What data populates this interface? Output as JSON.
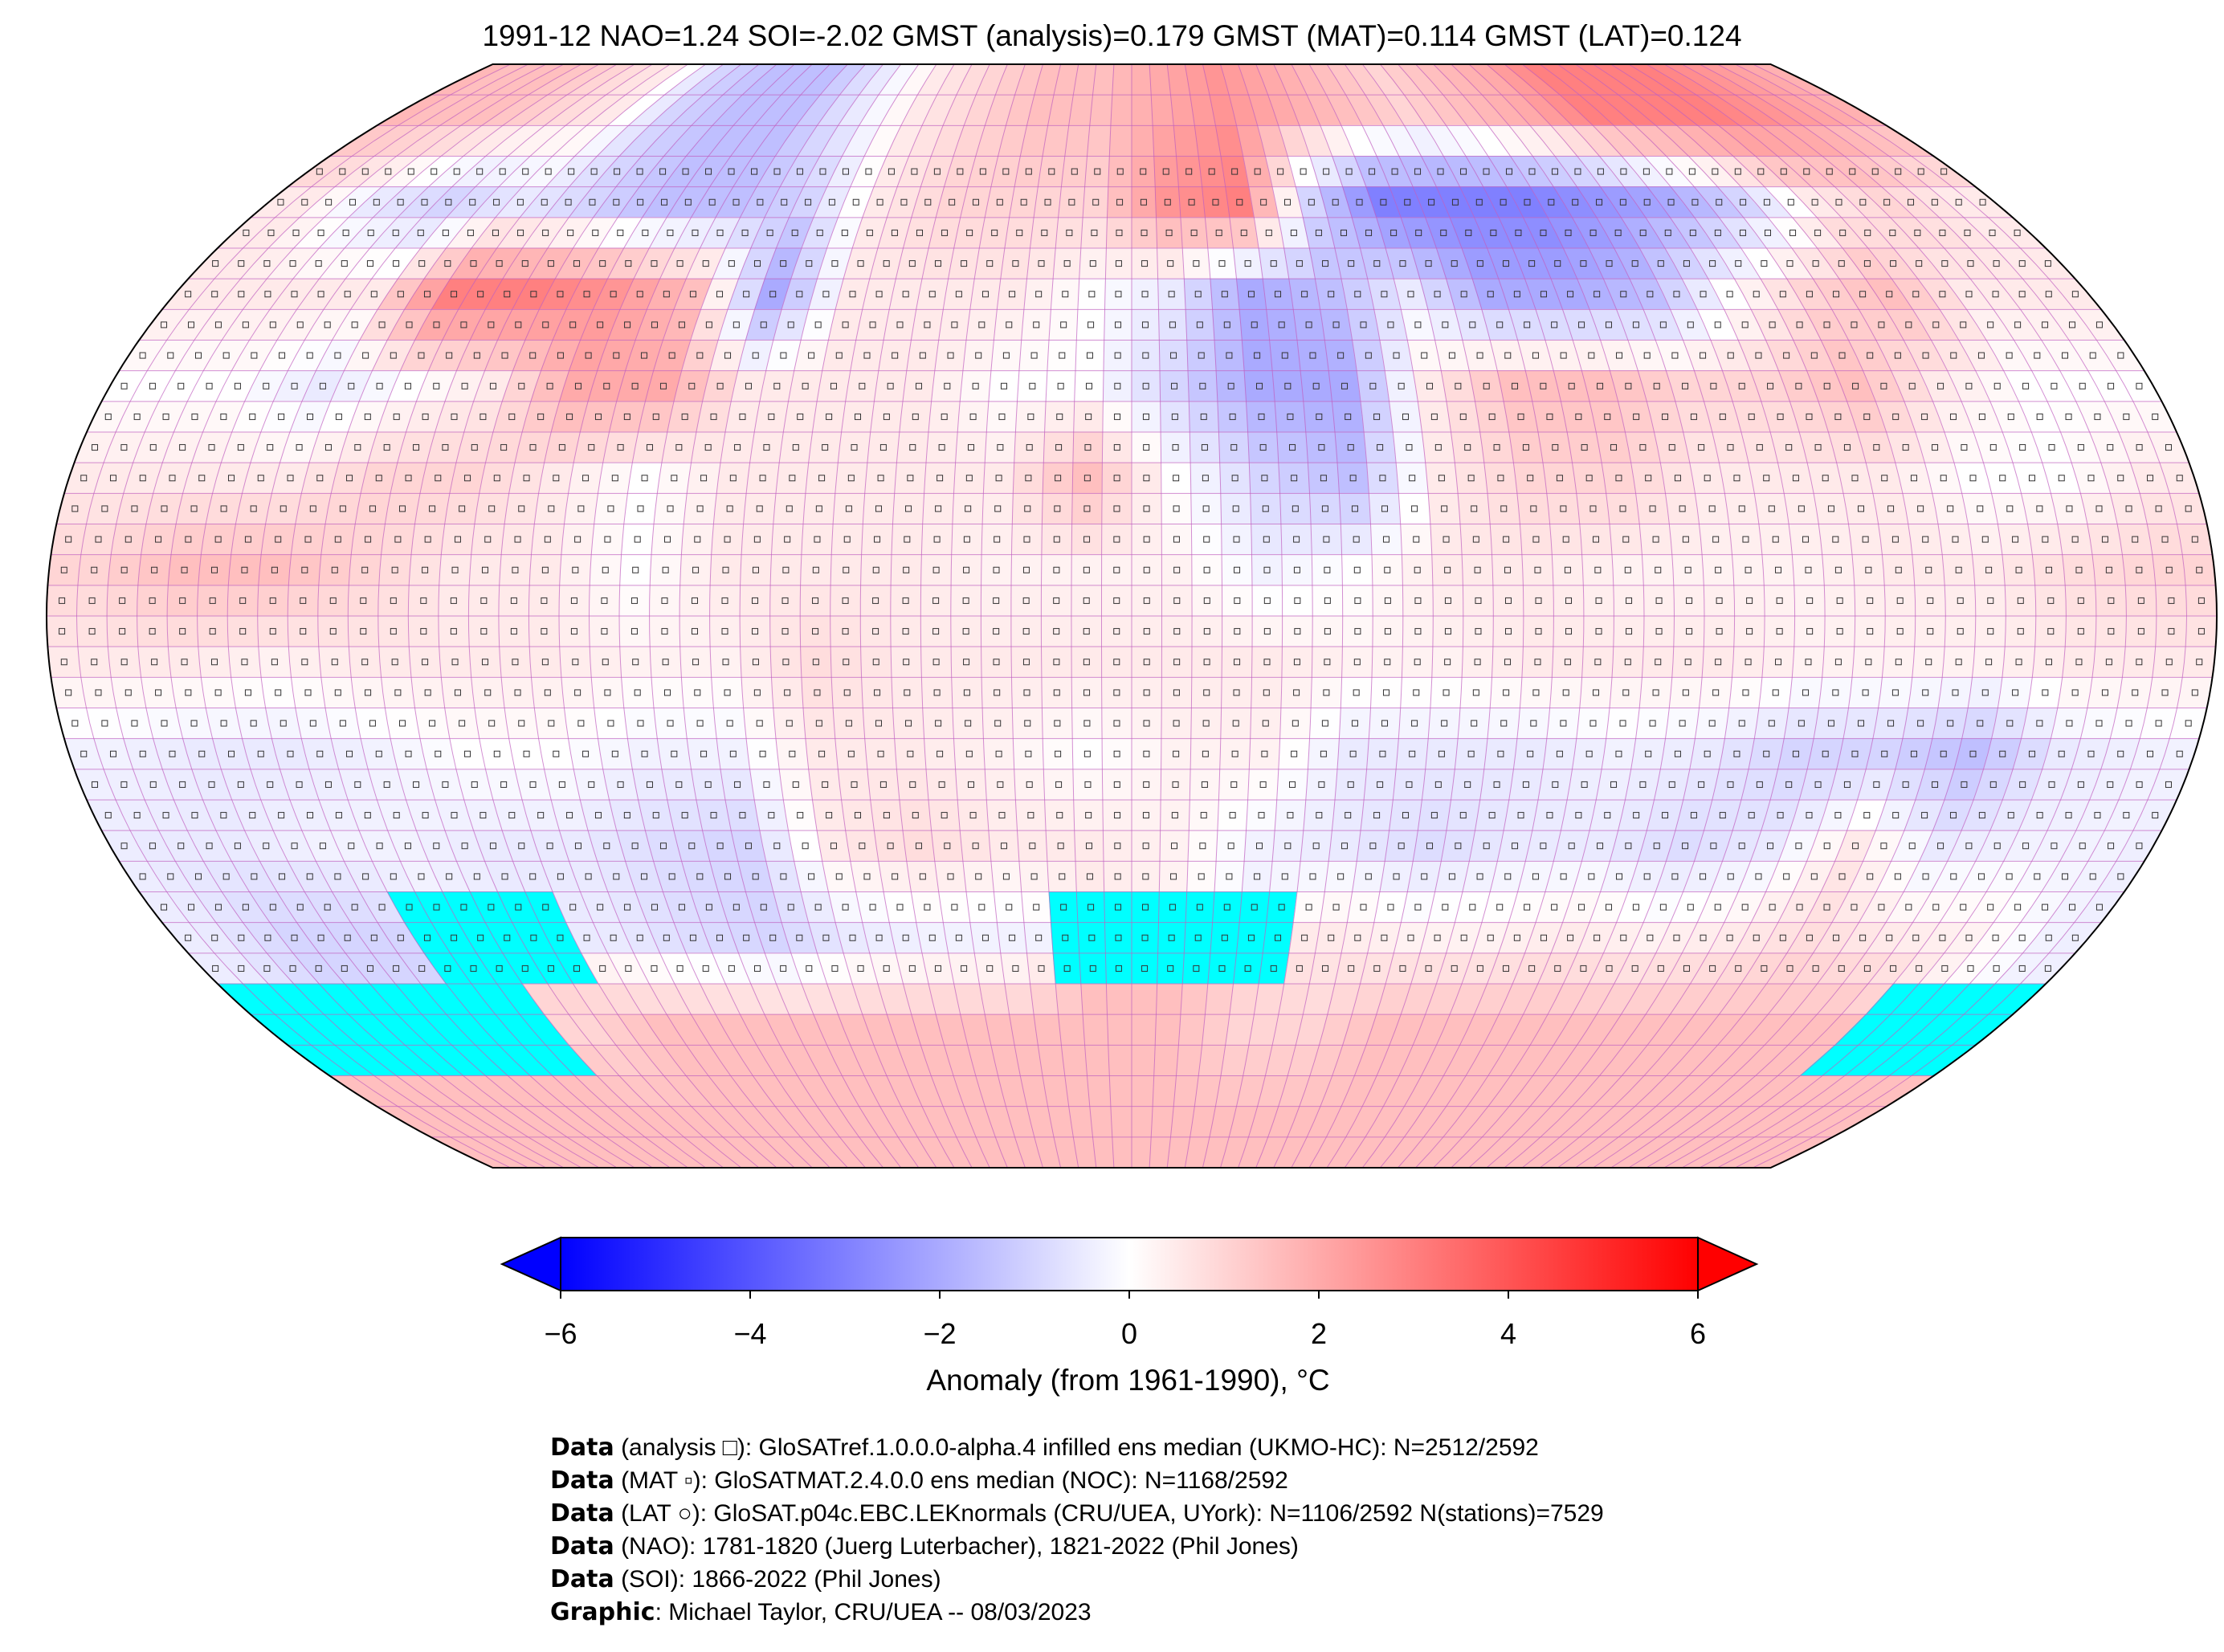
{
  "chart_data": {
    "type": "heatmap",
    "title": "1991-12 NAO=1.24 SOI=-2.02 GMST (analysis)=0.179 GMST (MAT)=0.114 GMST (LAT)=0.124",
    "projection": "Robinson",
    "grid_resolution_deg": 5,
    "coarse_lon": [
      -172.5,
      -157.5,
      -142.5,
      -127.5,
      -112.5,
      -97.5,
      -82.5,
      -67.5,
      -52.5,
      -37.5,
      -22.5,
      -7.5,
      7.5,
      22.5,
      37.5,
      52.5,
      67.5,
      82.5,
      97.5,
      112.5,
      127.5,
      142.5,
      157.5,
      172.5
    ],
    "coarse_lat": [
      82.5,
      67.5,
      52.5,
      37.5,
      22.5,
      7.5,
      -7.5,
      -22.5,
      -37.5,
      -52.5,
      -67.5,
      -82.5
    ],
    "anomaly_estimate": [
      [
        1.5,
        1.5,
        1,
        0.5,
        -1,
        -1.5,
        -1.5,
        -0.5,
        0.5,
        1,
        1.5,
        1.5,
        2,
        2.5,
        2,
        1.5,
        1,
        1.5,
        2,
        3,
        3,
        3,
        2.5,
        2
      ],
      [
        0.5,
        -0.5,
        -1,
        -0.5,
        -1,
        -1.5,
        -1.5,
        -1,
        0.5,
        1,
        1,
        1,
        2.5,
        3,
        -1,
        -3,
        -3,
        -3,
        -2.5,
        -2,
        -1,
        0.5,
        1,
        0.5
      ],
      [
        0.5,
        0.5,
        0.5,
        3,
        3,
        2.5,
        1.5,
        -2,
        0.5,
        0.5,
        0.5,
        0,
        -0.5,
        -2,
        -1.5,
        -0.5,
        -2,
        -2,
        -1.5,
        0,
        1,
        1.5,
        0.5,
        0.5
      ],
      [
        0,
        0,
        -0.5,
        0,
        0.5,
        2,
        2,
        0.5,
        0.5,
        0.5,
        0,
        0,
        -1,
        -2,
        -2,
        0.5,
        1.5,
        1.5,
        1,
        1,
        1.5,
        0.5,
        0,
        0
      ],
      [
        0.5,
        0.5,
        0.5,
        1,
        1,
        0.5,
        0,
        0.5,
        0.5,
        0.5,
        0.5,
        1.5,
        0,
        -1,
        -1.5,
        0.5,
        1,
        1,
        0.5,
        0.5,
        0.5,
        0,
        0,
        0.5
      ],
      [
        1,
        1.5,
        1.5,
        1,
        0.5,
        0.5,
        0,
        0.5,
        0.5,
        0.5,
        0.3,
        0.3,
        0.3,
        -0.3,
        0,
        0.5,
        0.5,
        0.3,
        0.3,
        0.3,
        0.5,
        0.5,
        0.8,
        1
      ],
      [
        0.5,
        0.5,
        0.3,
        0.5,
        0.5,
        0.5,
        0.3,
        0.3,
        0.8,
        0.5,
        0.5,
        0.5,
        0.5,
        0.5,
        0.3,
        0.3,
        0.5,
        0.5,
        0.5,
        0.3,
        0.3,
        0.3,
        0.5,
        0.5
      ],
      [
        -0.3,
        -0.5,
        -0.5,
        -0.3,
        0,
        0,
        -0.3,
        -0.3,
        0.5,
        0.5,
        0.3,
        0,
        0.3,
        0.3,
        -0.5,
        -0.5,
        -0.5,
        -0.3,
        -0.5,
        -1,
        -1,
        -1.5,
        -0.5,
        -0.3
      ],
      [
        -0.5,
        -0.5,
        -0.3,
        -0.3,
        -0.5,
        -0.5,
        -0.8,
        -1,
        0.5,
        0.8,
        0.5,
        0.5,
        0.3,
        -0.3,
        -0.5,
        -0.8,
        -0.5,
        -0.5,
        -0.8,
        -0.5,
        0.5,
        -0.5,
        -0.3,
        -0.3
      ],
      [
        -0.5,
        -1,
        -1,
        null,
        null,
        -0.5,
        -0.8,
        -1,
        -0.5,
        -0.3,
        -0.3,
        null,
        null,
        null,
        0.5,
        0.3,
        0.3,
        0.5,
        0.3,
        0.5,
        0.8,
        0.5,
        0.3,
        -0.3
      ],
      [
        null,
        null,
        null,
        null,
        1,
        1.5,
        1.5,
        1.5,
        1.5,
        1.5,
        1.5,
        1.5,
        1.5,
        1,
        1,
        1.5,
        1.5,
        1.5,
        1.5,
        1.5,
        1.5,
        1.5,
        null,
        null
      ],
      [
        1.5,
        1.5,
        1.5,
        1.5,
        1.5,
        1.5,
        1.5,
        1.5,
        1.5,
        1.5,
        1.5,
        1.5,
        1.5,
        1.5,
        1.5,
        1.5,
        1.5,
        1.5,
        1.5,
        1.5,
        1.5,
        1.5,
        1.5,
        1.5
      ]
    ],
    "missing_color": "#00ffff",
    "colorbar": {
      "label": "Anomaly (from 1961-1990), °C",
      "range": [
        -6,
        6
      ],
      "ticks": [
        "−6",
        "−4",
        "−2",
        "0",
        "2",
        "4",
        "6"
      ],
      "tick_values": [
        -6,
        -4,
        -2,
        0,
        2,
        4,
        6
      ],
      "cmap": "bwr",
      "extend": "both"
    }
  },
  "footer": {
    "lines": [
      {
        "bold": "Data",
        "text": " (analysis □): GloSATref.1.0.0.0-alpha.4 infilled ens median (UKMO-HC): N=2512/2592"
      },
      {
        "bold": "Data",
        "text": " (MAT ▫): GloSATMAT.2.4.0.0 ens median (NOC): N=1168/2592"
      },
      {
        "bold": "Data",
        "text": " (LAT ○): GloSAT.p04c.EBC.LEKnormals (CRU/UEA, UYork): N=1106/2592 N(stations)=7529"
      },
      {
        "bold": "Data",
        "text": " (NAO): 1781-1820 (Juerg Luterbacher), 1821-2022 (Phil Jones)"
      },
      {
        "bold": "Data",
        "text": " (SOI): 1866-2022 (Phil Jones)"
      },
      {
        "bold": "Graphic",
        "text": ": Michael Taylor, CRU/UEA -- 08/03/2023"
      }
    ]
  }
}
